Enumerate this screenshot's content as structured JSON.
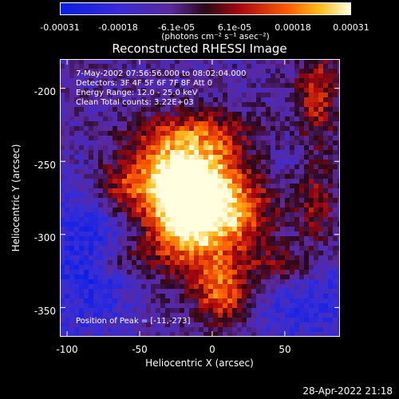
{
  "colorbar": {
    "ticks": [
      "-0.00031",
      "-0.00018",
      "-6.1e-05",
      "6.1e-05",
      "0.00018",
      "0.00031"
    ],
    "units": "(photons cm⁻² s⁻¹ asec⁻²)",
    "min": -0.00031,
    "max": 0.00031
  },
  "chart_data": {
    "type": "heatmap",
    "title": "Reconstructed RHESSI Image",
    "xlabel": "Heliocentric X (arcsec)",
    "ylabel": "Heliocentric Y (arcsec)",
    "xlim": [
      -105,
      88
    ],
    "ylim": [
      -370,
      -180
    ],
    "xticks": [
      "-100",
      "-50",
      "0",
      "50"
    ],
    "yticks": [
      "-200",
      "-250",
      "-300",
      "-350"
    ],
    "info_lines": [
      "7-May-2002 07:56:56.000 to 08:02:04.000",
      "Detectors: 3F 4F 5F 6F 7F 8F Att 0",
      "Energy Range: 12.0 - 25.0 keV",
      "Clean     Total counts: 3.22E+03"
    ],
    "peak_label": "Position of Peak = [-11,-273]",
    "peak": {
      "x": -11,
      "y": -273
    }
  },
  "timestamp": "28-Apr-2022 21:18"
}
